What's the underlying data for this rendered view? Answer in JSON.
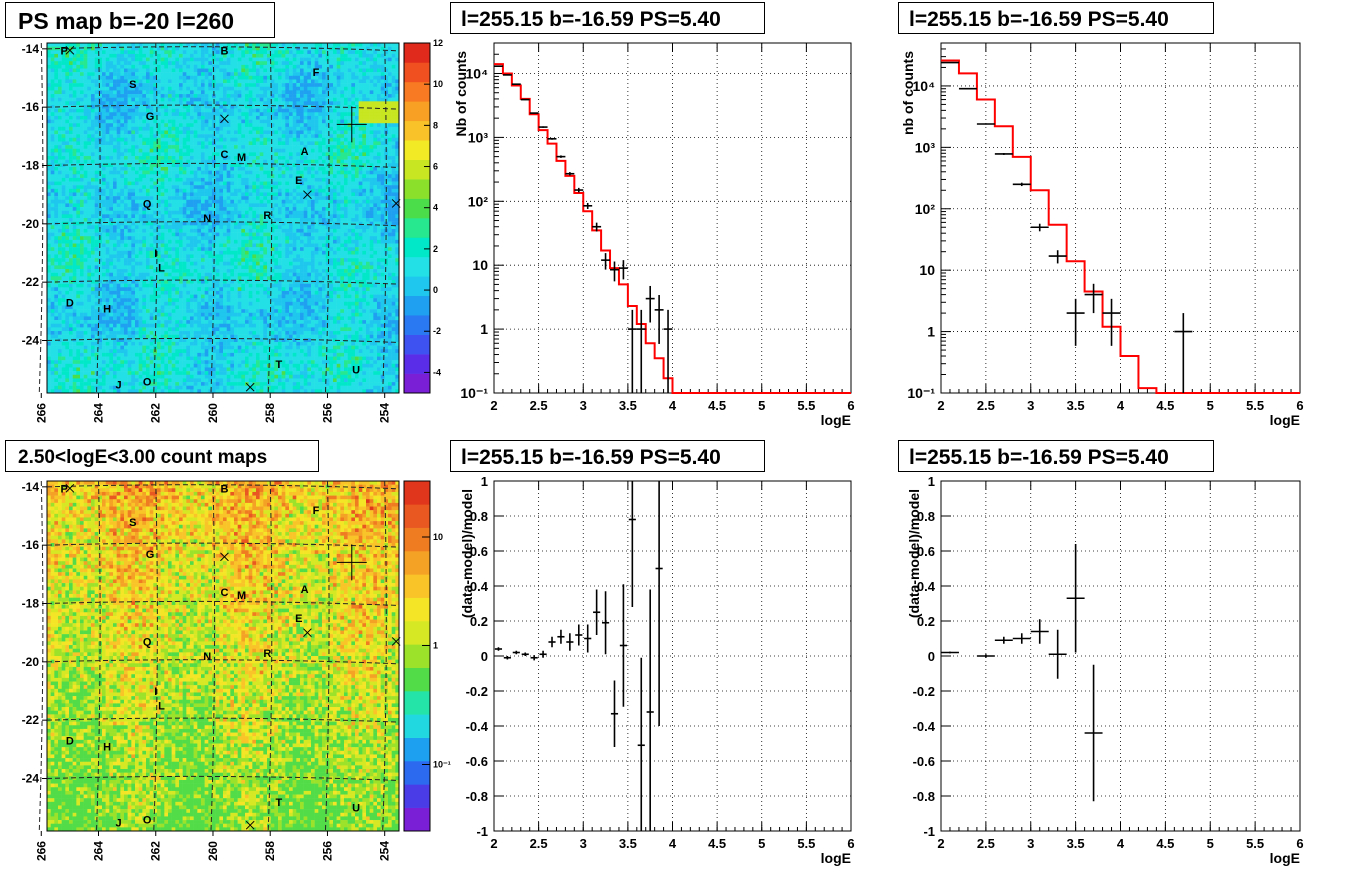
{
  "chart_data": [
    {
      "type": "heatmap",
      "title": "PS map b=-20 l=260",
      "xticks": [
        "266",
        "264",
        "262",
        "260",
        "258",
        "256",
        "254"
      ],
      "yticks": [
        "-14",
        "-16",
        "-18",
        "-20",
        "-22",
        "-24"
      ],
      "xlim": [
        265.8,
        253.5
      ],
      "ylim": [
        -25.8,
        -13.8
      ],
      "colorbar": {
        "ticks": [
          "12",
          "10",
          "8",
          "6",
          "4",
          "2",
          "0",
          "-2",
          "-4"
        ],
        "range": [
          -5,
          12
        ]
      },
      "sources": [
        "P",
        "B",
        "F",
        "S",
        "G",
        "C",
        "M",
        "A",
        "E",
        "Q",
        "N",
        "R",
        "I",
        "L",
        "D",
        "H",
        "T",
        "U",
        "J",
        "O"
      ],
      "grid": true
    },
    {
      "type": "line",
      "title": "l=255.15 b=-16.59 PS=5.40",
      "xlabel": "logE",
      "ylabel": "Nb of counts",
      "xlim": [
        2,
        6
      ],
      "ylim": [
        0.1,
        30000
      ],
      "yscale": "log",
      "xticks": [
        "2",
        "2.5",
        "3",
        "3.5",
        "4",
        "4.5",
        "5",
        "5.5",
        "6"
      ],
      "yticks": [
        "10⁴",
        "10³",
        "10²",
        "10",
        "1",
        "10⁻¹"
      ],
      "grid": true,
      "series": [
        {
          "points": [
            [
              2.05,
              13000
            ],
            [
              2.15,
              9500
            ],
            [
              2.25,
              6800
            ],
            [
              2.35,
              3900
            ],
            [
              2.45,
              2400
            ],
            [
              2.55,
              1450
            ],
            [
              2.65,
              950
            ],
            [
              2.75,
              500
            ],
            [
              2.85,
              270
            ],
            [
              2.95,
              150
            ],
            [
              3.05,
              85
            ],
            [
              3.15,
              40
            ],
            [
              3.25,
              12
            ],
            [
              3.35,
              8.5
            ],
            [
              3.45,
              9
            ],
            [
              3.55,
              1
            ],
            [
              3.65,
              1
            ],
            [
              3.75,
              3
            ],
            [
              3.85,
              2
            ],
            [
              3.95,
              1
            ]
          ]
        },
        {
          "points": [
            [
              2.0,
              14000
            ],
            [
              2.1,
              10000
            ],
            [
              2.2,
              6500
            ],
            [
              2.3,
              4000
            ],
            [
              2.4,
              2300
            ],
            [
              2.5,
              1300
            ],
            [
              2.6,
              800
            ],
            [
              2.7,
              430
            ],
            [
              2.8,
              250
            ],
            [
              2.9,
              135
            ],
            [
              3.0,
              70
            ],
            [
              3.1,
              35
            ],
            [
              3.2,
              17
            ],
            [
              3.3,
              9
            ],
            [
              3.4,
              5
            ],
            [
              3.5,
              2.3
            ],
            [
              3.6,
              1.2
            ],
            [
              3.7,
              0.6
            ],
            [
              3.8,
              0.35
            ],
            [
              3.9,
              0.17
            ],
            [
              4.0,
              0.1
            ]
          ]
        }
      ]
    },
    {
      "type": "line",
      "title": "l=255.15 b=-16.59 PS=5.40",
      "xlabel": "logE",
      "ylabel": "nb of counts",
      "xlim": [
        2,
        6
      ],
      "ylim": [
        0.1,
        50000
      ],
      "yscale": "log",
      "xticks": [
        "2",
        "2.5",
        "3",
        "3.5",
        "4",
        "4.5",
        "5",
        "5.5",
        "6"
      ],
      "yticks": [
        "10⁴",
        "10³",
        "10²",
        "10",
        "1",
        "10⁻¹"
      ],
      "grid": true,
      "series": [
        {
          "points": [
            [
              2.1,
              24000
            ],
            [
              2.3,
              9000
            ],
            [
              2.5,
              2400
            ],
            [
              2.7,
              780
            ],
            [
              2.9,
              250
            ],
            [
              3.1,
              50
            ],
            [
              3.3,
              17
            ],
            [
              3.5,
              2
            ],
            [
              3.7,
              4
            ],
            [
              3.9,
              2
            ],
            [
              4.7,
              1
            ]
          ]
        },
        {
          "points": [
            [
              2.0,
              26000
            ],
            [
              2.2,
              16000
            ],
            [
              2.4,
              6000
            ],
            [
              2.6,
              2200
            ],
            [
              2.8,
              700
            ],
            [
              3.0,
              200
            ],
            [
              3.2,
              55
            ],
            [
              3.4,
              14
            ],
            [
              3.6,
              4.5
            ],
            [
              3.8,
              1.2
            ],
            [
              4.0,
              0.4
            ],
            [
              4.2,
              0.12
            ],
            [
              4.4,
              0.1
            ]
          ]
        }
      ]
    },
    {
      "type": "heatmap",
      "title": "2.50<logE<3.00 count maps",
      "xticks": [
        "266",
        "264",
        "262",
        "260",
        "258",
        "256",
        "254"
      ],
      "yticks": [
        "-14",
        "-16",
        "-18",
        "-20",
        "-22",
        "-24"
      ],
      "xlim": [
        265.8,
        253.5
      ],
      "ylim": [
        -25.8,
        -13.8
      ],
      "colorbar": {
        "ticks": [
          "10",
          "1",
          "10⁻¹"
        ],
        "scale": "log"
      },
      "sources": [
        "P",
        "B",
        "F",
        "S",
        "G",
        "C",
        "M",
        "A",
        "E",
        "Q",
        "N",
        "R",
        "I",
        "L",
        "D",
        "H",
        "T",
        "U",
        "J",
        "O"
      ],
      "grid": true
    },
    {
      "type": "scatter",
      "title": "l=255.15 b=-16.59 PS=5.40",
      "xlabel": "logE",
      "ylabel": "(data-model)/model",
      "xlim": [
        2,
        6
      ],
      "ylim": [
        -1,
        1
      ],
      "xticks": [
        "2",
        "2.5",
        "3",
        "3.5",
        "4",
        "4.5",
        "5",
        "5.5",
        "6"
      ],
      "yticks": [
        "1",
        "0.8",
        "0.6",
        "0.4",
        "0.2",
        "0",
        "-0.2",
        "-0.4",
        "-0.6",
        "-0.8",
        "-1"
      ],
      "grid": true,
      "points": [
        [
          2.05,
          0.04,
          0.01
        ],
        [
          2.15,
          -0.01,
          0.01
        ],
        [
          2.25,
          0.02,
          0.01
        ],
        [
          2.35,
          0.01,
          0.01
        ],
        [
          2.45,
          -0.01,
          0.015
        ],
        [
          2.55,
          0.01,
          0.02
        ],
        [
          2.65,
          0.08,
          0.03
        ],
        [
          2.75,
          0.11,
          0.04
        ],
        [
          2.85,
          0.08,
          0.05
        ],
        [
          2.95,
          0.12,
          0.06
        ],
        [
          3.05,
          0.1,
          0.08
        ],
        [
          3.15,
          0.25,
          0.13
        ],
        [
          3.25,
          0.19,
          0.18
        ],
        [
          3.35,
          -0.33,
          0.19
        ],
        [
          3.45,
          0.06,
          0.35
        ],
        [
          3.55,
          0.78,
          0.5
        ],
        [
          3.65,
          -0.51,
          0.5
        ],
        [
          3.75,
          -0.32,
          0.7
        ],
        [
          3.85,
          0.5,
          0.9
        ]
      ]
    },
    {
      "type": "scatter",
      "title": "l=255.15 b=-16.59 PS=5.40",
      "xlabel": "logE",
      "ylabel": "(data-model)/model",
      "xlim": [
        2,
        6
      ],
      "ylim": [
        -1,
        1
      ],
      "xticks": [
        "2",
        "2.5",
        "3",
        "3.5",
        "4",
        "4.5",
        "5",
        "5.5",
        "6"
      ],
      "yticks": [
        "1",
        "0.8",
        "0.6",
        "0.4",
        "0.2",
        "0",
        "-0.2",
        "-0.4",
        "-0.6",
        "-0.8",
        "-1"
      ],
      "grid": true,
      "points": [
        [
          2.1,
          0.02,
          0.005
        ],
        [
          2.5,
          0.0,
          0.01
        ],
        [
          2.7,
          0.09,
          0.02
        ],
        [
          2.9,
          0.1,
          0.03
        ],
        [
          3.1,
          0.14,
          0.07
        ],
        [
          3.3,
          0.01,
          0.14
        ],
        [
          3.5,
          0.33,
          0.31
        ],
        [
          3.7,
          -0.44,
          0.39
        ]
      ]
    }
  ]
}
